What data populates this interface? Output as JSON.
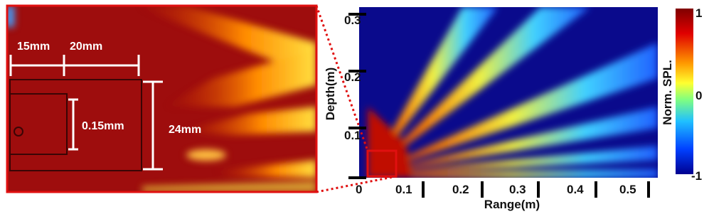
{
  "inset": {
    "dimensions": [
      "15mm",
      "20mm",
      "0.15mm",
      "24mm"
    ]
  },
  "main": {
    "x_label": "Range(m)",
    "xticks": [
      0,
      0.1,
      0.2,
      0.3,
      0.4,
      0.5
    ],
    "y_label": "Depth(m)",
    "yticks": [
      0.3,
      0.2,
      0.1
    ]
  },
  "colorbar": {
    "label": "Norm. SPL.",
    "ticks": [
      1,
      0,
      -1
    ]
  }
}
